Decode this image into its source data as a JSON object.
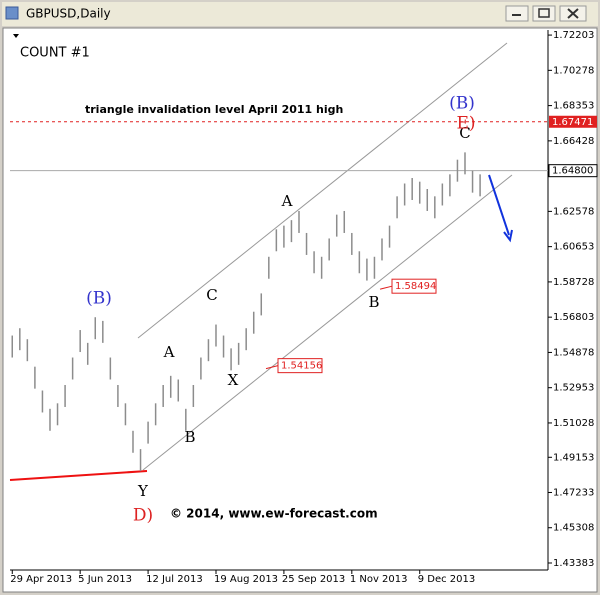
{
  "window": {
    "title": "GBPUSD,Daily"
  },
  "chart_data": {
    "type": "hl-bars",
    "title": "COUNT #1",
    "annotation": "triangle invalidation level April 2011 high",
    "credit": "© 2014, www.ew-forecast.com",
    "color": "#8c8c8c",
    "high": [
      1.558,
      1.562,
      1.556,
      1.541,
      1.528,
      1.518,
      1.521,
      1.531,
      1.546,
      1.561,
      1.554,
      1.568,
      1.566,
      1.546,
      1.531,
      1.521,
      1.506,
      1.496,
      1.511,
      1.521,
      1.531,
      1.536,
      1.534,
      1.518,
      1.531,
      1.546,
      1.556,
      1.564,
      1.558,
      1.551,
      1.554,
      1.562,
      1.571,
      1.581,
      1.601,
      1.616,
      1.618,
      1.621,
      1.626,
      1.614,
      1.604,
      1.601,
      1.611,
      1.624,
      1.626,
      1.614,
      1.604,
      1.6,
      1.601,
      1.611,
      1.618,
      1.634,
      1.641,
      1.644,
      1.642,
      1.638,
      1.634,
      1.641,
      1.646,
      1.654,
      1.658,
      1.648,
      1.646
    ],
    "low": [
      1.546,
      1.55,
      1.544,
      1.529,
      1.516,
      1.506,
      1.509,
      1.519,
      1.534,
      1.549,
      1.542,
      1.556,
      1.554,
      1.534,
      1.519,
      1.509,
      1.494,
      1.484,
      1.499,
      1.509,
      1.519,
      1.524,
      1.522,
      1.506,
      1.519,
      1.534,
      1.544,
      1.552,
      1.546,
      1.539,
      1.542,
      1.55,
      1.559,
      1.569,
      1.589,
      1.604,
      1.606,
      1.609,
      1.614,
      1.602,
      1.592,
      1.589,
      1.599,
      1.612,
      1.614,
      1.602,
      1.592,
      1.588,
      1.589,
      1.599,
      1.606,
      1.622,
      1.629,
      1.632,
      1.63,
      1.626,
      1.622,
      1.629,
      1.634,
      1.642,
      1.646,
      1.636,
      1.634
    ],
    "xlim": [
      -0.3,
      71
    ],
    "xticks": [
      {
        "value": 0,
        "label": "29 Apr 2013"
      },
      {
        "value": 9,
        "label": "5 Jun 2013"
      },
      {
        "value": 18,
        "label": "12 Jul 2013"
      },
      {
        "value": 27,
        "label": "19 Aug 2013"
      },
      {
        "value": 36,
        "label": "25 Sep 2013"
      },
      {
        "value": 45,
        "label": "1 Nov 2013"
      },
      {
        "value": 54,
        "label": "9 Dec 2013"
      }
    ],
    "ylim": [
      1.43,
      1.7248
    ],
    "yticks": [
      1.72203,
      1.70278,
      1.68353,
      1.66428,
      1.62578,
      1.60653,
      1.58728,
      1.56803,
      1.54878,
      1.52953,
      1.51028,
      1.49153,
      1.47233,
      1.45308,
      1.43383
    ],
    "current_price": {
      "value": 1.648,
      "label": "1.64800"
    },
    "invalidation_level": 1.67471,
    "price_boxes": [
      1.58494,
      1.54156
    ],
    "wave_labels": [
      {
        "text": "(B)",
        "color": "#3333cc"
      },
      {
        "text": "A",
        "color": "#000000"
      },
      {
        "text": "B",
        "color": "#000000"
      },
      {
        "text": "C",
        "color": "#000000"
      },
      {
        "text": "X",
        "color": "#000000"
      },
      {
        "text": "A",
        "color": "#000000"
      },
      {
        "text": "B",
        "color": "#000000"
      },
      {
        "text": "C",
        "color": "#000000"
      },
      {
        "text": "(B)",
        "color": "#3333cc"
      },
      {
        "text": "E)",
        "color": "#dd2222"
      },
      {
        "text": "Y",
        "color": "#000000"
      },
      {
        "text": "D)",
        "color": "#dd2222"
      }
    ]
  }
}
